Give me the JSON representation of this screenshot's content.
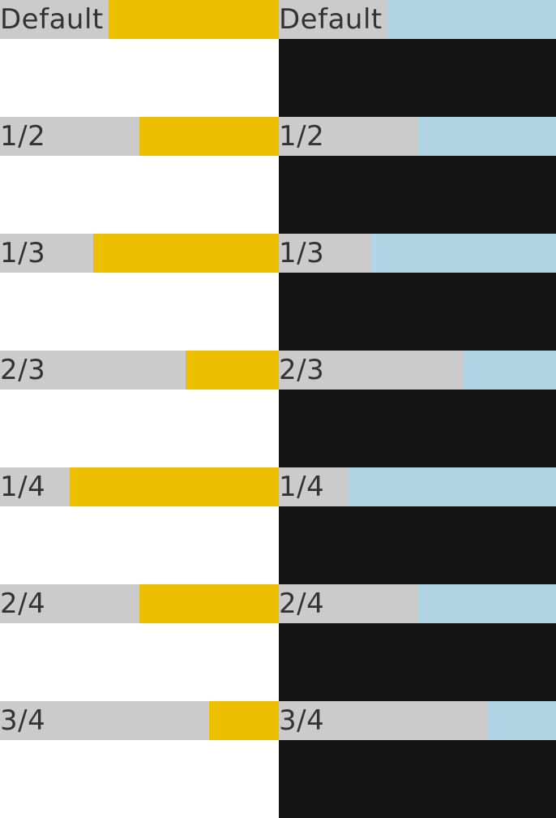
{
  "colors": {
    "light_background": "#ffffff",
    "dark_background": "#131313",
    "label_cell": "#cbcbcb",
    "label_text": "#333333",
    "light_accent": "#ecbf00",
    "dark_accent": "#b2d5e5"
  },
  "rows": [
    {
      "label": "Default",
      "fraction": 0.39
    },
    {
      "label": "1/2",
      "fraction": 0.5
    },
    {
      "label": "1/3",
      "fraction": 0.333
    },
    {
      "label": "2/3",
      "fraction": 0.667
    },
    {
      "label": "1/4",
      "fraction": 0.25
    },
    {
      "label": "2/4",
      "fraction": 0.5
    },
    {
      "label": "3/4",
      "fraction": 0.75
    }
  ]
}
